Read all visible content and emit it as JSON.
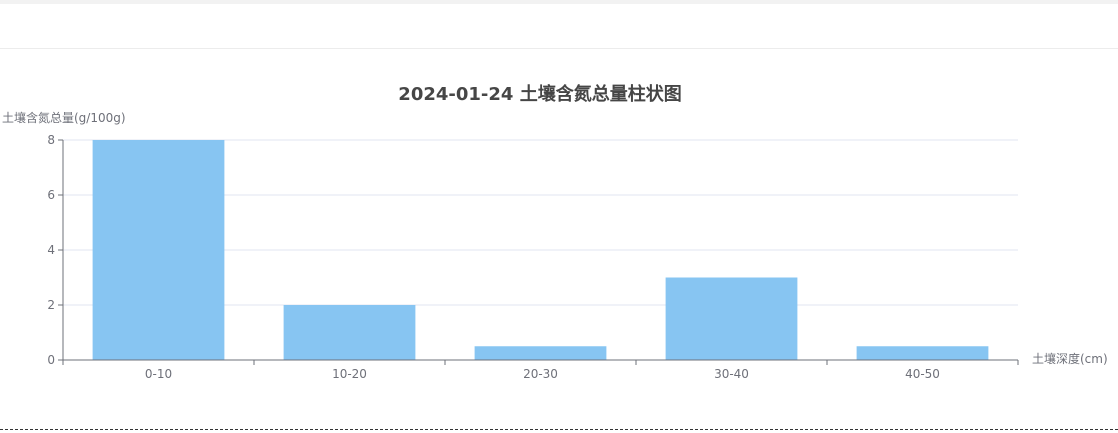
{
  "chart_data": {
    "type": "bar",
    "title": "2024-01-24 土壤含氮总量柱状图",
    "xlabel": "土壤深度(cm)",
    "ylabel": "土壤含氮总量(g/100g)",
    "categories": [
      "0-10",
      "10-20",
      "20-30",
      "30-40",
      "40-50"
    ],
    "values": [
      8,
      2,
      0.5,
      3,
      0.5
    ],
    "ylim": [
      0,
      8
    ],
    "yticks": [
      "0",
      "2",
      "4",
      "6",
      "8"
    ],
    "grid": true,
    "colors": {
      "bar": "#87c5f2",
      "grid": "#e0e6f1",
      "axis": "#6e7079",
      "title": "#464646",
      "label": "#6e7079"
    }
  }
}
